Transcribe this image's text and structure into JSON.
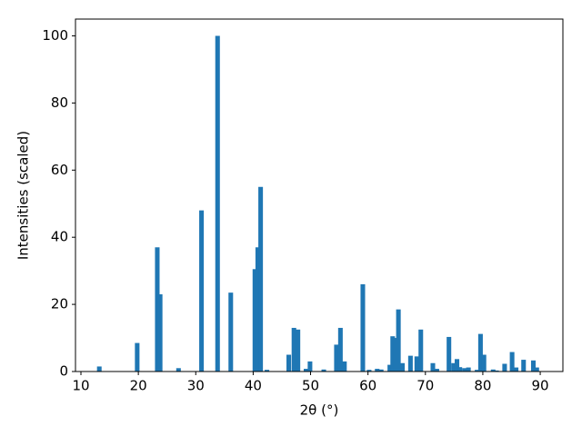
{
  "chart_data": {
    "type": "bar",
    "xlabel": "2θ (°)",
    "ylabel": "Intensities (scaled)",
    "color": "#1f77b4",
    "x": [
      13.2,
      19.8,
      23.3,
      23.8,
      27.0,
      31.0,
      33.8,
      36.1,
      40.3,
      40.8,
      41.3,
      42.4,
      46.2,
      47.1,
      47.8,
      49.2,
      49.9,
      52.3,
      54.5,
      55.2,
      55.9,
      59.1,
      60.2,
      61.6,
      62.3,
      63.8,
      64.3,
      64.8,
      65.3,
      66.0,
      67.4,
      68.5,
      69.2,
      71.3,
      72.0,
      74.1,
      74.9,
      75.5,
      76.0,
      76.8,
      77.5,
      79.0,
      79.6,
      80.2,
      81.8,
      82.4,
      83.8,
      85.1,
      85.8,
      87.1,
      88.8,
      89.4
    ],
    "values": [
      1.5,
      8.5,
      37,
      23,
      1,
      48,
      100,
      23.5,
      30.5,
      37,
      55,
      0.5,
      5,
      13,
      12.5,
      0.8,
      3,
      0.6,
      8,
      13,
      3,
      26,
      0.5,
      0.8,
      0.6,
      2,
      10.5,
      10,
      18.5,
      2.5,
      4.7,
      4.5,
      12.5,
      2.5,
      0.8,
      10.3,
      2.5,
      3.7,
      1.3,
      1,
      1.2,
      0.5,
      11.2,
      5,
      0.6,
      0.3,
      2.3,
      5.8,
      1.2,
      3.5,
      3.3,
      1.2
    ],
    "xlim": [
      9.05,
      93.95
    ],
    "ylim": [
      0,
      105
    ],
    "xticks": [
      10,
      20,
      30,
      40,
      50,
      60,
      70,
      80,
      90
    ],
    "yticks": [
      0,
      20,
      40,
      60,
      80,
      100
    ]
  }
}
